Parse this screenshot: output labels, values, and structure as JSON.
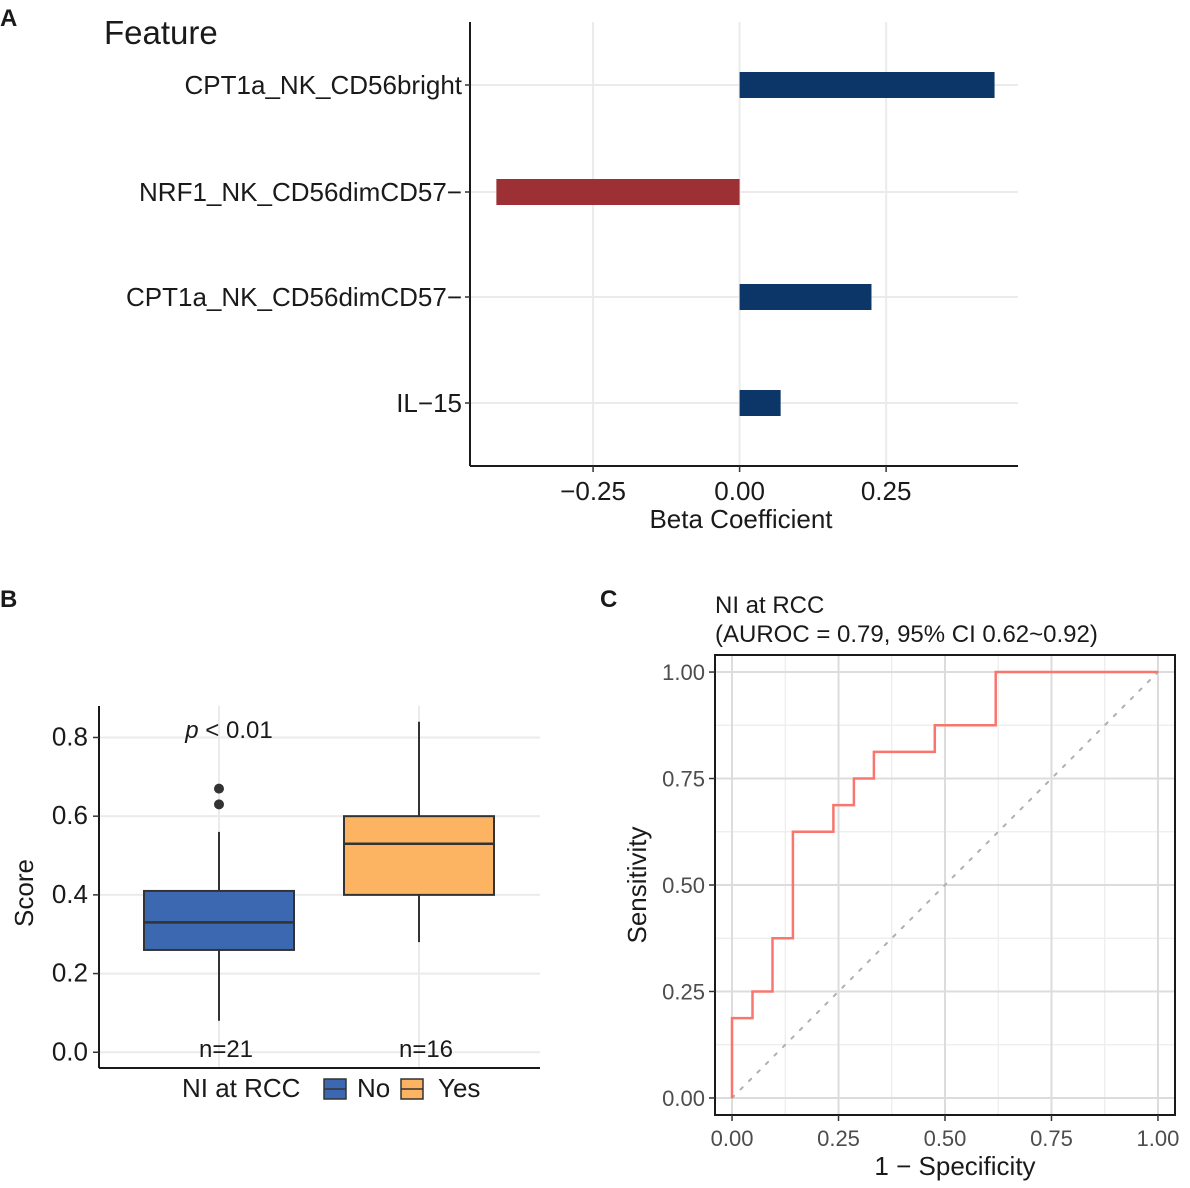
{
  "panels": {
    "A": "A",
    "B": "B",
    "C": "C"
  },
  "chart_data": [
    {
      "id": "A",
      "type": "bar",
      "orientation": "horizontal",
      "header": "Feature",
      "xlabel": "Beta Coefficient",
      "categories": [
        "CPT1a_NK_CD56bright",
        "NRF1_NK_CD56dimCD57−",
        "CPT1a_NK_CD56dimCD57−",
        "IL−15"
      ],
      "values": [
        0.435,
        -0.415,
        0.225,
        0.07
      ],
      "xlim": [
        -0.46,
        0.475
      ],
      "xticks": [
        -0.25,
        0.0,
        0.25
      ],
      "xtick_labels": [
        "−0.25",
        "0.00",
        "0.25"
      ],
      "colors": {
        "positive": "#0b3667",
        "negative": "#9c3034"
      }
    },
    {
      "id": "B",
      "type": "box",
      "ylabel": "Score",
      "ylim": [
        -0.04,
        0.88
      ],
      "yticks": [
        0.0,
        0.2,
        0.4,
        0.6,
        0.8
      ],
      "ytick_labels": [
        "0.0",
        "0.2",
        "0.4",
        "0.6",
        "0.8"
      ],
      "annotation": {
        "italic": "p",
        "rest": " < 0.01"
      },
      "legend": {
        "title": "NI at RCC",
        "entries": [
          "No",
          "Yes"
        ]
      },
      "groups": [
        {
          "name": "No",
          "n_label": "n=21",
          "min": 0.08,
          "q1": 0.26,
          "median": 0.33,
          "q3": 0.41,
          "max": 0.56,
          "outliers": [
            0.63,
            0.67
          ],
          "color": "#3c68b1"
        },
        {
          "name": "Yes",
          "n_label": "n=16",
          "min": 0.28,
          "q1": 0.4,
          "median": 0.53,
          "q3": 0.6,
          "max": 0.84,
          "outliers": [],
          "color": "#fdb462"
        }
      ]
    },
    {
      "id": "C",
      "type": "line",
      "title_line1": "NI at RCC",
      "title_line2": "(AUROC = 0.79, 95% CI 0.62~0.92)",
      "xlabel": "1 − Specificity",
      "ylabel": "Sensitivity",
      "xlim": [
        -0.04,
        1.04
      ],
      "ylim": [
        -0.04,
        1.04
      ],
      "xticks": [
        0,
        0.25,
        0.5,
        0.75,
        1.0
      ],
      "xtick_labels": [
        "0.00",
        "0.25",
        "0.50",
        "0.75",
        "1.00"
      ],
      "yticks": [
        0,
        0.25,
        0.5,
        0.75,
        1.0
      ],
      "ytick_labels": [
        "0.00",
        "0.25",
        "0.50",
        "0.75",
        "1.00"
      ],
      "roc_color": "#f8766d",
      "diagonal_color": "#b0b0b0",
      "series": [
        {
          "name": "ROC",
          "x": [
            0,
            0,
            0.048,
            0.048,
            0.095,
            0.095,
            0.143,
            0.143,
            0.238,
            0.238,
            0.286,
            0.286,
            0.333,
            0.333,
            0.476,
            0.476,
            0.619,
            0.619,
            1.0
          ],
          "y": [
            0,
            0.1875,
            0.1875,
            0.25,
            0.25,
            0.375,
            0.375,
            0.625,
            0.625,
            0.6875,
            0.6875,
            0.75,
            0.75,
            0.8125,
            0.8125,
            0.875,
            0.875,
            1.0,
            1.0
          ]
        }
      ]
    }
  ]
}
